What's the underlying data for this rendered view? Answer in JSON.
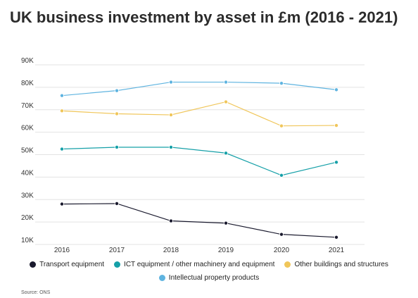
{
  "chart_data": {
    "type": "line",
    "title": "UK business investment by asset in £m (2016 - 2021)",
    "x": [
      "2016",
      "2017",
      "2018",
      "2019",
      "2020",
      "2021"
    ],
    "y_ticks": [
      "10K",
      "20K",
      "30K",
      "40K",
      "50K",
      "60K",
      "70K",
      "80K",
      "90K"
    ],
    "ylim": [
      10000,
      90000
    ],
    "grid": true,
    "legend_position": "bottom",
    "series": [
      {
        "name": "Transport equipment",
        "color": "#1a1a2e",
        "values": [
          28000,
          28200,
          20500,
          19500,
          14500,
          13200
        ]
      },
      {
        "name": "ICT equipment / other machinery and equipment",
        "color": "#16a0a8",
        "values": [
          52500,
          53300,
          53300,
          50700,
          40800,
          46600
        ]
      },
      {
        "name": "Other buildings and structures",
        "color": "#f0c65a",
        "values": [
          69500,
          68200,
          67700,
          73500,
          62800,
          63000
        ]
      },
      {
        "name": "Intellectual property products",
        "color": "#5fb4e0",
        "values": [
          76300,
          78500,
          82300,
          82300,
          81800,
          78900
        ]
      }
    ],
    "source": "Source: ONS"
  }
}
